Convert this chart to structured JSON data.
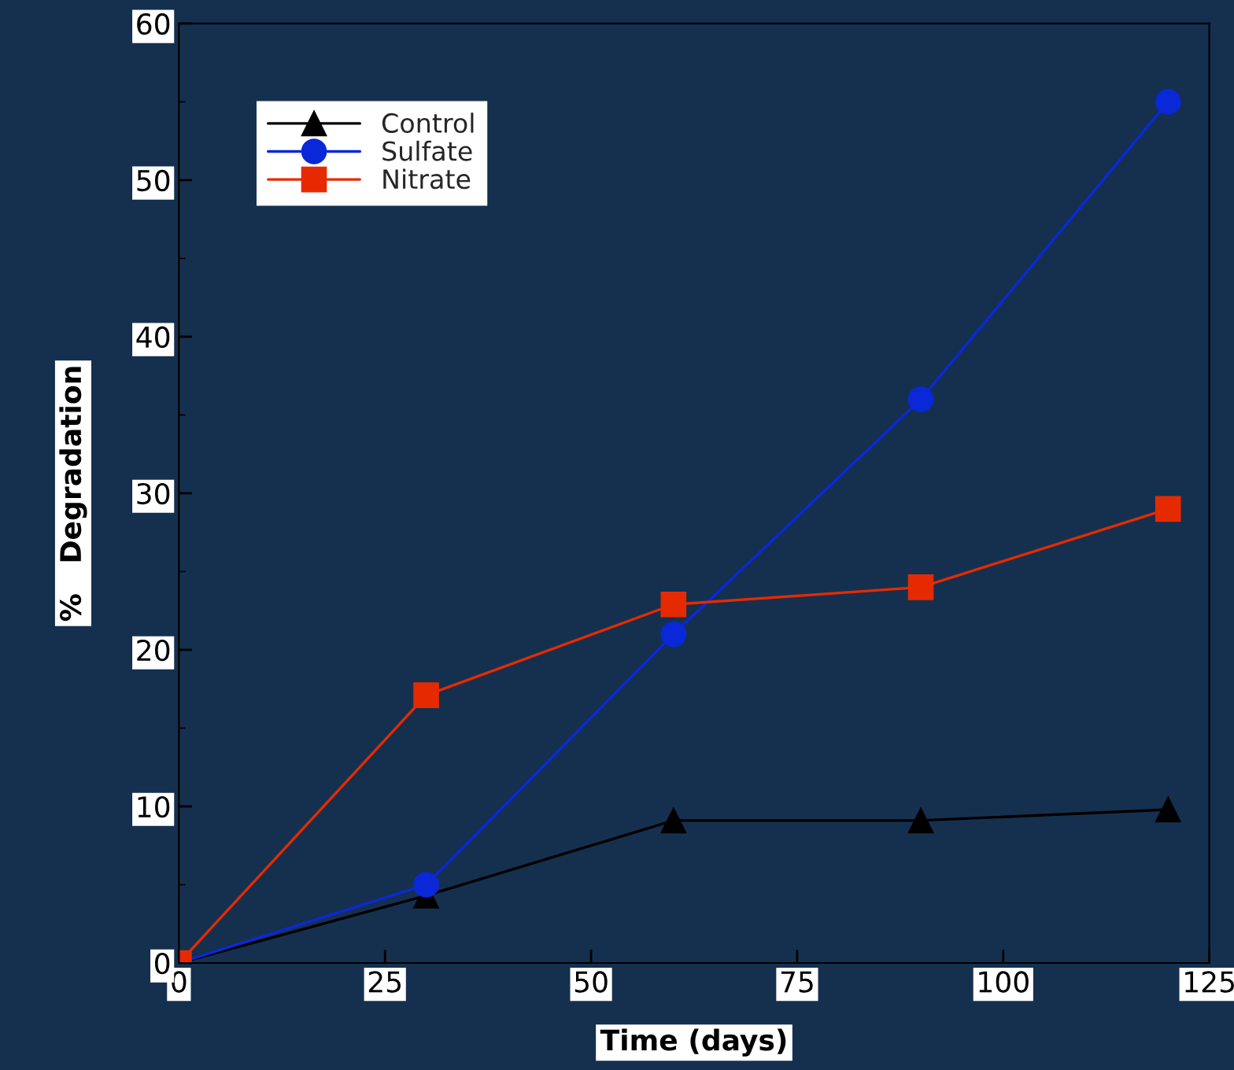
{
  "chart_data": {
    "type": "line",
    "xlabel": "Time (days)",
    "ylabel": "%   Degradation",
    "x": [
      0,
      30,
      60,
      90,
      120
    ],
    "series": [
      {
        "name": "Control",
        "color": "#000000",
        "marker": "triangle",
        "values": [
          0,
          4.3,
          9.1,
          9.1,
          9.8
        ]
      },
      {
        "name": "Sulfate",
        "color": "#0a28d8",
        "marker": "circle",
        "values": [
          0,
          5.0,
          21,
          36,
          55
        ]
      },
      {
        "name": "Nitrate",
        "color": "#e62a00",
        "marker": "square",
        "values": [
          0,
          17.1,
          22.9,
          24,
          29
        ]
      }
    ],
    "xlim": [
      0,
      125
    ],
    "xticks": [
      0,
      25,
      50,
      75,
      100,
      125
    ],
    "ylim": [
      0,
      60
    ],
    "yticks": [
      0,
      {
        "value": 5,
        "label": null
      },
      10,
      {
        "value": 15,
        "label": null
      },
      20,
      {
        "value": 25,
        "label": null
      },
      30,
      {
        "value": 35,
        "label": null
      },
      40,
      {
        "value": 45,
        "label": null
      },
      50,
      {
        "value": 55,
        "label": null
      },
      60
    ],
    "grid": false,
    "legend": "top left",
    "line_style": "solid"
  }
}
